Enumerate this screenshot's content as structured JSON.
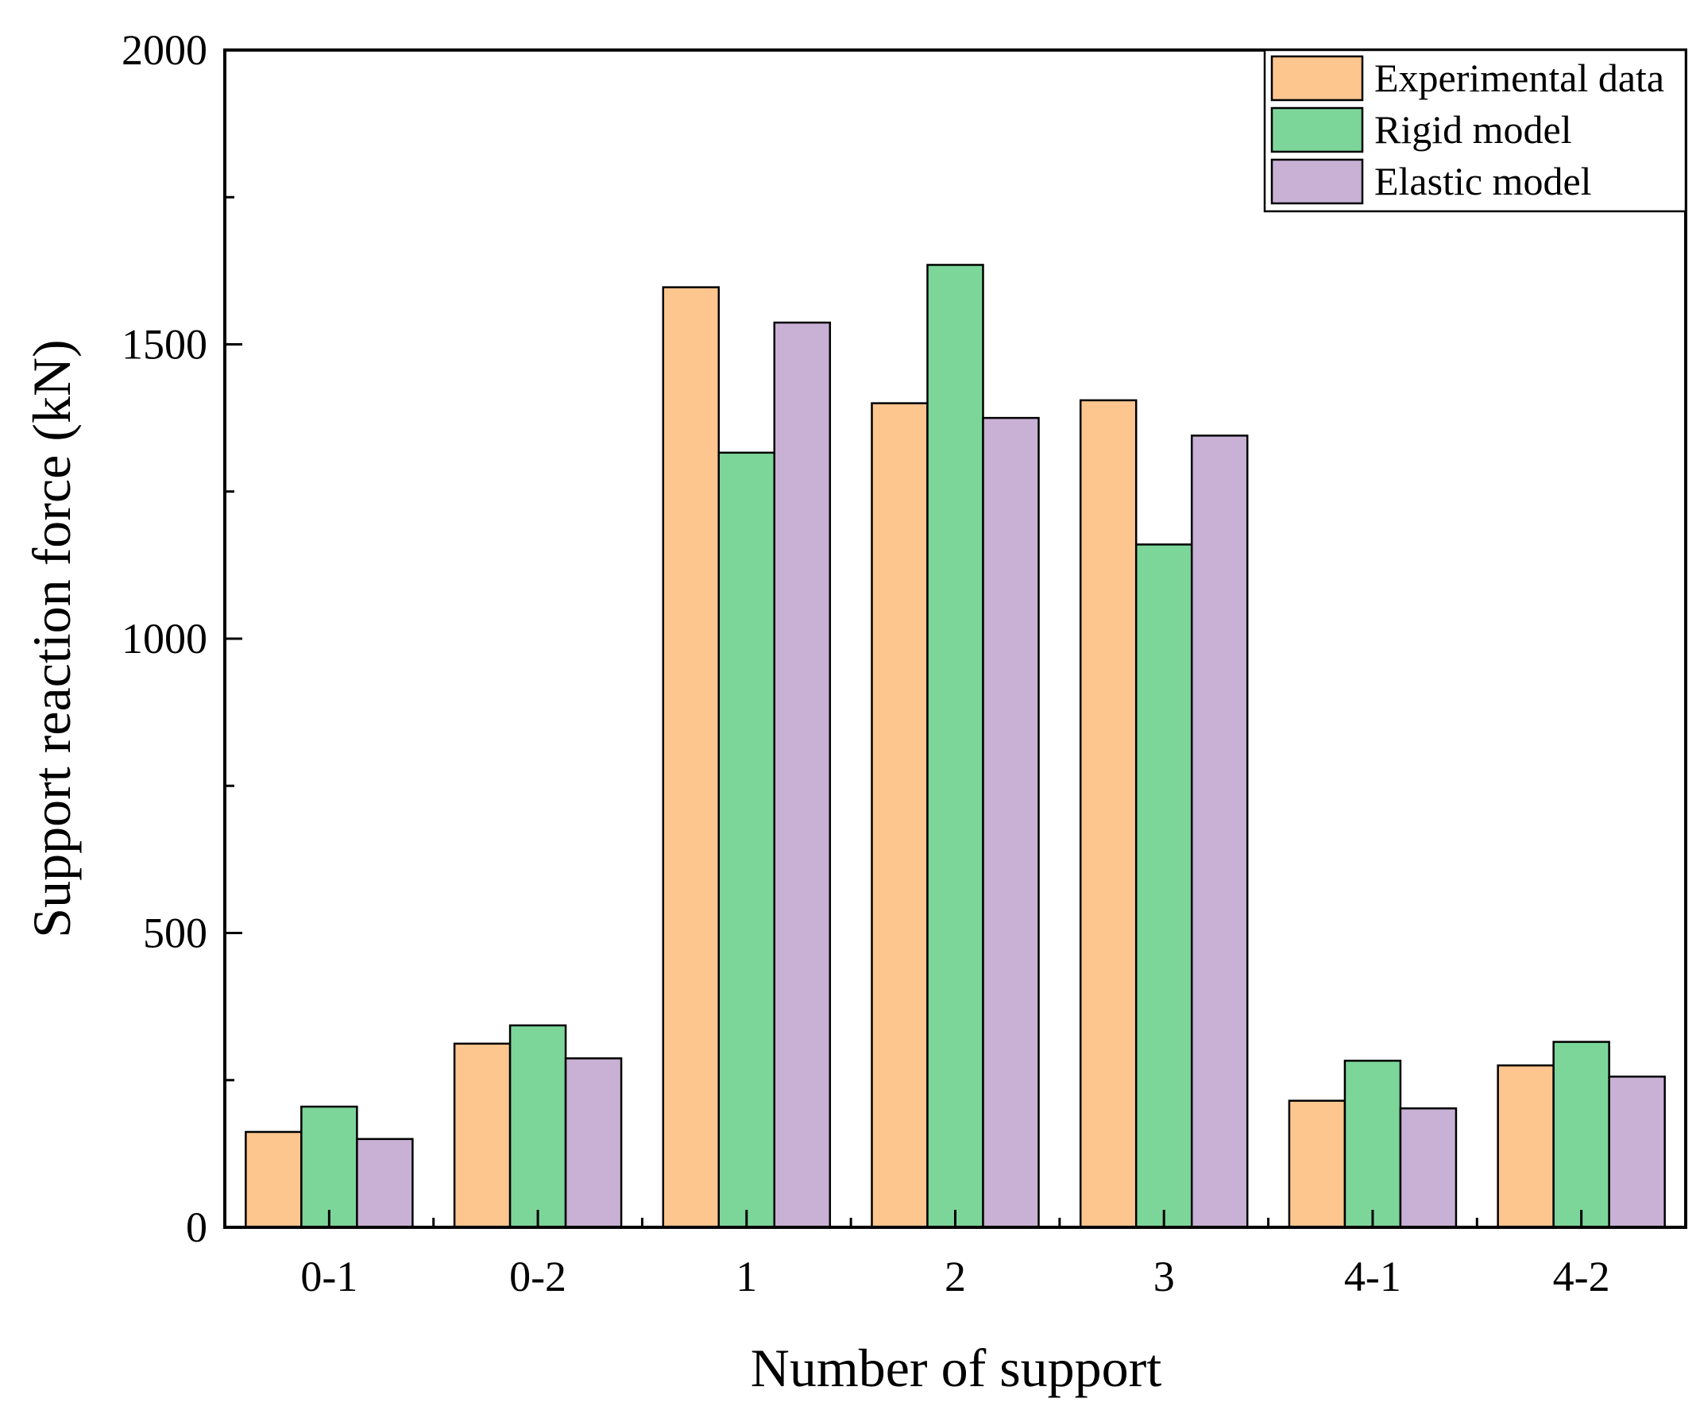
{
  "chart_data": {
    "type": "bar",
    "title": "",
    "xlabel": "Number of support",
    "ylabel": "Support reaction force (kN)",
    "ylim": [
      0,
      2000
    ],
    "yticks": [
      0,
      500,
      1000,
      1500,
      2000
    ],
    "ytick_labels": [
      "0",
      "500",
      "1000",
      "1500",
      "2000"
    ],
    "categories": [
      "0-1",
      "0-2",
      "1",
      "2",
      "3",
      "4-1",
      "4-2"
    ],
    "legend_position": "top-right",
    "series": [
      {
        "name": "Experimental data",
        "color": "#FDC68F",
        "values": [
          162,
          312,
          1597,
          1400,
          1405,
          215,
          275
        ]
      },
      {
        "name": "Rigid model",
        "color": "#7CD69A",
        "values": [
          205,
          343,
          1316,
          1635,
          1160,
          283,
          315
        ]
      },
      {
        "name": "Elastic model",
        "color": "#C8B1D5",
        "values": [
          150,
          287,
          1537,
          1375,
          1345,
          202,
          256
        ]
      }
    ]
  }
}
